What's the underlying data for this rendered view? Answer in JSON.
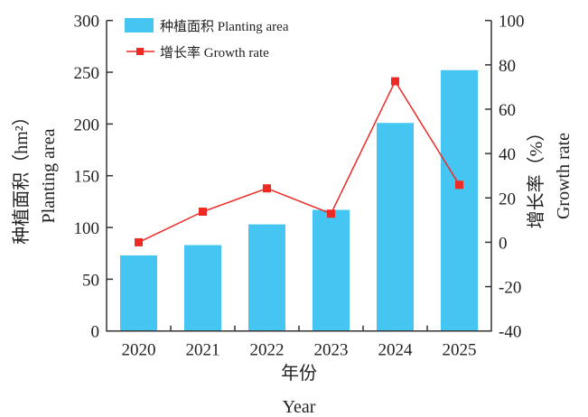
{
  "chart_data": {
    "type": "bar+line",
    "categories": [
      "2020",
      "2021",
      "2022",
      "2023",
      "2024",
      "2025"
    ],
    "series": [
      {
        "name": "种植面积 Planting area",
        "type": "bar",
        "axis": "left",
        "color": "#45c6f2",
        "values": [
          73,
          83,
          103,
          117,
          201,
          252
        ]
      },
      {
        "name": "增长率 Growth rate",
        "type": "line",
        "axis": "right",
        "color": "#ee2a24",
        "values": [
          0,
          13.8,
          24.3,
          12.9,
          72.6,
          25.9
        ]
      }
    ],
    "xlabel_cn": "年份",
    "xlabel_en": "Year",
    "ylabel_cn": "种植面积（hm²）",
    "ylabel_en": "Planting area",
    "y2label_cn": "增长率（%）",
    "y2label_en": "Growth rate",
    "ylim": [
      0,
      300
    ],
    "yticks": [
      0,
      50,
      100,
      150,
      200,
      250,
      300
    ],
    "y2lim": [
      -40,
      100
    ],
    "y2ticks": [
      -40,
      -20,
      0,
      20,
      40,
      60,
      80,
      100
    ],
    "grid": false,
    "legend_placement": "top-left"
  }
}
